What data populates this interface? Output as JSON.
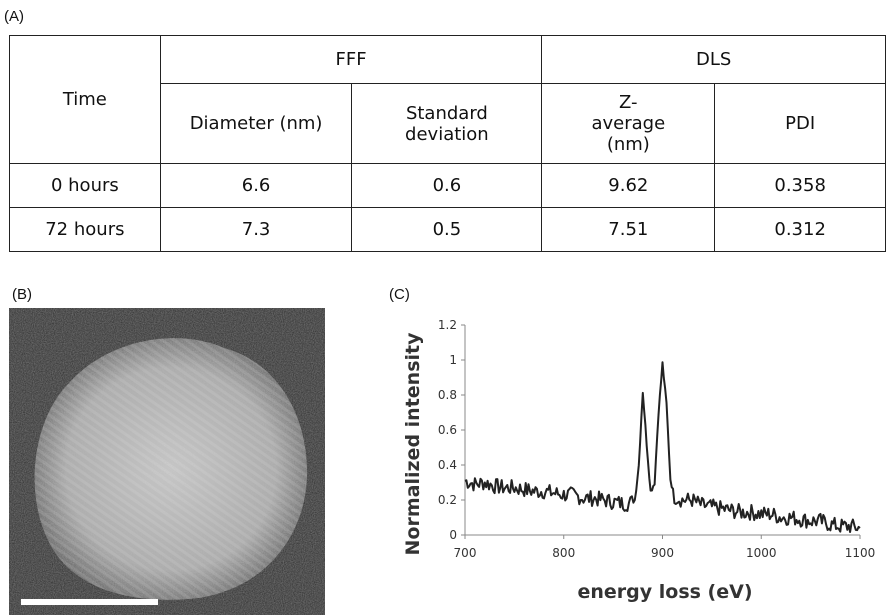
{
  "panel_labels": {
    "a": "(A)",
    "b": "(B)",
    "c": "(C)"
  },
  "table": {
    "time_header": "Time",
    "group_fff": "FFF",
    "group_dls": "DLS",
    "col_diameter": "Diameter (nm)",
    "col_sd": "Standard deviation",
    "col_zavg": "Z-average (nm)",
    "col_pdi": "PDI",
    "rows": [
      {
        "time": "0 hours",
        "diameter": "6.6",
        "sd": "0.6",
        "zavg": "9.62",
        "pdi": "0.358"
      },
      {
        "time": "72 hours",
        "diameter": "7.3",
        "sd": "0.5",
        "zavg": "7.51",
        "pdi": "0.312"
      }
    ]
  },
  "chart_data": {
    "type": "line",
    "title": "",
    "xlabel": "energy loss (eV)",
    "ylabel": "Normalized intensity",
    "xlim": [
      700,
      1100
    ],
    "ylim": [
      0,
      1.2
    ],
    "xticks": [
      "700",
      "800",
      "900",
      "1000",
      "1100"
    ],
    "yticks": [
      "0",
      "0.2",
      "0.4",
      "0.6",
      "0.8",
      "1",
      "1.2"
    ],
    "grid": false,
    "legend": "none",
    "series": [
      {
        "color": "#222222",
        "x": [
          700,
          710,
          720,
          730,
          740,
          750,
          760,
          770,
          780,
          790,
          800,
          810,
          820,
          830,
          840,
          850,
          860,
          866,
          872,
          876,
          880,
          884,
          888,
          892,
          896,
          900,
          904,
          908,
          912,
          920,
          930,
          940,
          950,
          960,
          970,
          980,
          990,
          1000,
          1010,
          1020,
          1030,
          1040,
          1050,
          1060,
          1070,
          1080,
          1090,
          1100
        ],
        "y": [
          0.31,
          0.29,
          0.3,
          0.28,
          0.27,
          0.27,
          0.26,
          0.25,
          0.25,
          0.24,
          0.23,
          0.23,
          0.21,
          0.21,
          0.2,
          0.19,
          0.18,
          0.18,
          0.2,
          0.4,
          0.82,
          0.52,
          0.25,
          0.3,
          0.7,
          0.98,
          0.75,
          0.32,
          0.22,
          0.2,
          0.2,
          0.17,
          0.16,
          0.15,
          0.14,
          0.13,
          0.13,
          0.12,
          0.12,
          0.1,
          0.1,
          0.09,
          0.08,
          0.08,
          0.06,
          0.05,
          0.05,
          0.04
        ]
      }
    ]
  }
}
